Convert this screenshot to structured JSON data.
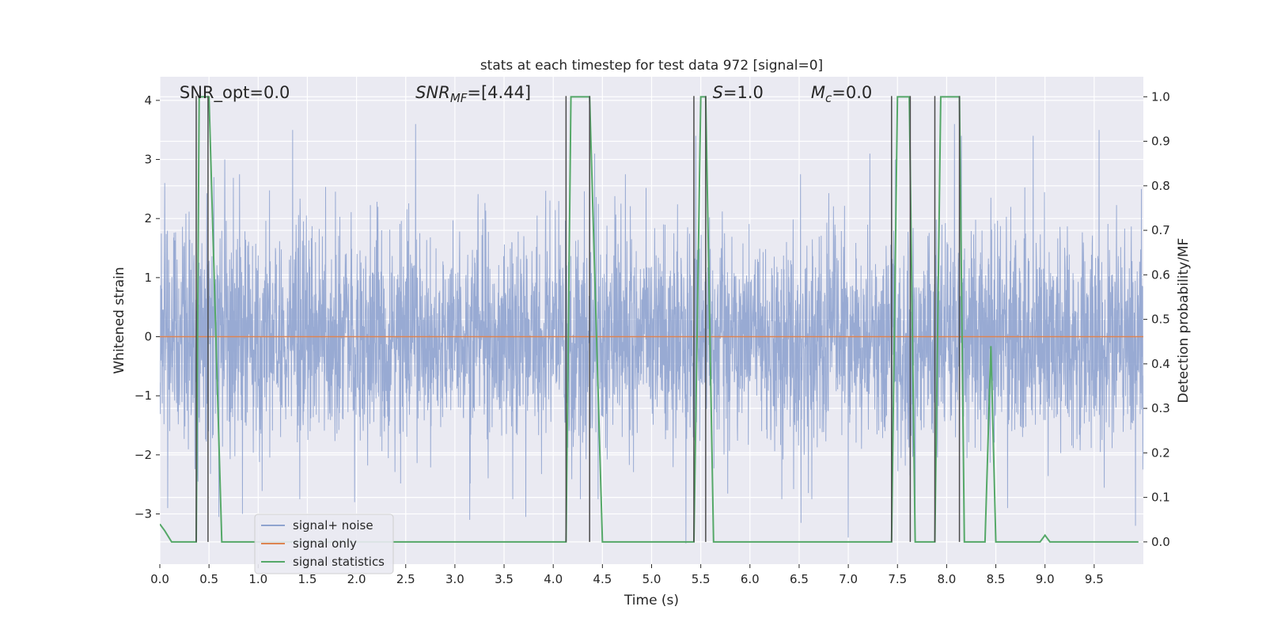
{
  "chart_data": {
    "type": "line",
    "title": "stats at each timestep for test data 972 [signal=0]",
    "xlabel": "Time (s)",
    "ylabel": "Whitened strain",
    "ylabel_right": "Detection probability/MF",
    "xlim": [
      0,
      10
    ],
    "ylim": [
      -3.85,
      4.4
    ],
    "ylim_right": [
      -0.05,
      1.045
    ],
    "x_ticks": [
      0.0,
      0.5,
      1.0,
      1.5,
      2.0,
      2.5,
      3.0,
      3.5,
      4.0,
      4.5,
      5.0,
      5.5,
      6.0,
      6.5,
      7.0,
      7.5,
      8.0,
      8.5,
      9.0,
      9.5
    ],
    "x_tick_labels": [
      "0.0",
      "0.5",
      "1.0",
      "1.5",
      "2.0",
      "2.5",
      "3.0",
      "3.5",
      "4.0",
      "4.5",
      "5.0",
      "5.5",
      "6.0",
      "6.5",
      "7.0",
      "7.5",
      "8.0",
      "8.5",
      "9.0",
      "9.5"
    ],
    "y_ticks": [
      -3,
      -2,
      -1,
      0,
      1,
      2,
      3,
      4
    ],
    "y_tick_labels": [
      "−3",
      "−2",
      "−1",
      "0",
      "1",
      "2",
      "3",
      "4"
    ],
    "y_ticks_right": [
      0.0,
      0.1,
      0.2,
      0.3,
      0.4,
      0.5,
      0.6,
      0.7,
      0.8,
      0.9,
      1.0
    ],
    "y_tick_labels_right": [
      "0.0",
      "0.1",
      "0.2",
      "0.3",
      "0.4",
      "0.5",
      "0.6",
      "0.7",
      "0.8",
      "0.9",
      "1.0"
    ],
    "grid": true,
    "legend_position": "lower-left",
    "annotations": [
      {
        "text": "SNR_opt=0.0",
        "x": 0.2
      },
      {
        "text": "SNR_MF=[4.44]",
        "x": 2.6,
        "math_base": "SNR",
        "math_sub": "MF",
        "math_rest": "=[4.44]"
      },
      {
        "text": "S=1.0",
        "x": 5.62,
        "math_base": "S",
        "math_sub": "",
        "math_rest": "=1.0"
      },
      {
        "text": "M_c=0.0",
        "x": 6.62,
        "math_base": "M",
        "math_sub": "c",
        "math_rest": "=0.0"
      }
    ],
    "series": [
      {
        "name": "signal+ noise",
        "axis": "left",
        "color": "#8fa3cf",
        "kind": "noise",
        "seed": 972,
        "std": 0.9,
        "extremes": [
          {
            "x": 0.05,
            "y": 2.6
          },
          {
            "x": 0.08,
            "y": -2.9
          },
          {
            "x": 0.55,
            "y": 2.7
          },
          {
            "x": 0.6,
            "y": -3.05
          },
          {
            "x": 0.66,
            "y": 3.0
          },
          {
            "x": 0.84,
            "y": 3.4
          },
          {
            "x": 0.84,
            "y": -3.0
          },
          {
            "x": 1.35,
            "y": 3.5
          },
          {
            "x": 1.98,
            "y": -2.8
          },
          {
            "x": 2.6,
            "y": 3.6
          },
          {
            "x": 3.15,
            "y": -3.1
          },
          {
            "x": 3.72,
            "y": -3.05
          },
          {
            "x": 4.42,
            "y": 3.1
          },
          {
            "x": 5.35,
            "y": -3.5
          },
          {
            "x": 5.45,
            "y": 3.4
          },
          {
            "x": 6.52,
            "y": -3.15
          },
          {
            "x": 7.0,
            "y": -3.4
          },
          {
            "x": 7.22,
            "y": 3.1
          },
          {
            "x": 7.68,
            "y": -3.1
          },
          {
            "x": 8.08,
            "y": 3.6
          },
          {
            "x": 8.15,
            "y": 3.4
          },
          {
            "x": 8.88,
            "y": 3.4
          },
          {
            "x": 9.55,
            "y": 3.5
          },
          {
            "x": 9.92,
            "y": -3.2
          },
          {
            "x": 9.98,
            "y": 2.5
          },
          {
            "x": 7.48,
            "y": 3.0
          },
          {
            "x": 8.62,
            "y": -2.9
          }
        ]
      },
      {
        "name": "signal only",
        "axis": "left",
        "color": "#dd8452",
        "kind": "line",
        "x": [
          0,
          10
        ],
        "y": [
          0,
          0
        ]
      },
      {
        "name": "signal statistics",
        "axis": "right",
        "color": "#55a868",
        "kind": "line",
        "x": [
          0.0,
          0.05,
          0.12,
          0.37,
          0.4,
          0.5,
          0.63,
          4.13,
          4.18,
          4.37,
          4.5,
          5.43,
          5.5,
          5.55,
          5.63,
          7.44,
          7.5,
          7.62,
          7.68,
          7.88,
          7.94,
          8.13,
          8.18,
          8.39,
          8.45,
          8.5,
          8.95,
          9.0,
          9.05,
          9.95
        ],
        "y": [
          0.04,
          0.025,
          0.0,
          0.0,
          1.0,
          1.0,
          0.0,
          0.0,
          1.0,
          1.0,
          0.0,
          0.0,
          1.0,
          1.0,
          0.0,
          0.0,
          1.0,
          1.0,
          0.0,
          0.0,
          1.0,
          1.0,
          0.0,
          0.0,
          0.44,
          0.0,
          0.0,
          0.015,
          0.0,
          0.0
        ]
      }
    ],
    "vertical_markers": {
      "color": "#4a4a4a",
      "x": [
        0.37,
        0.49,
        4.13,
        4.37,
        5.43,
        5.55,
        7.44,
        7.63,
        7.88,
        8.13
      ],
      "y_top": 1.0,
      "y_bottom": 0.0
    }
  }
}
